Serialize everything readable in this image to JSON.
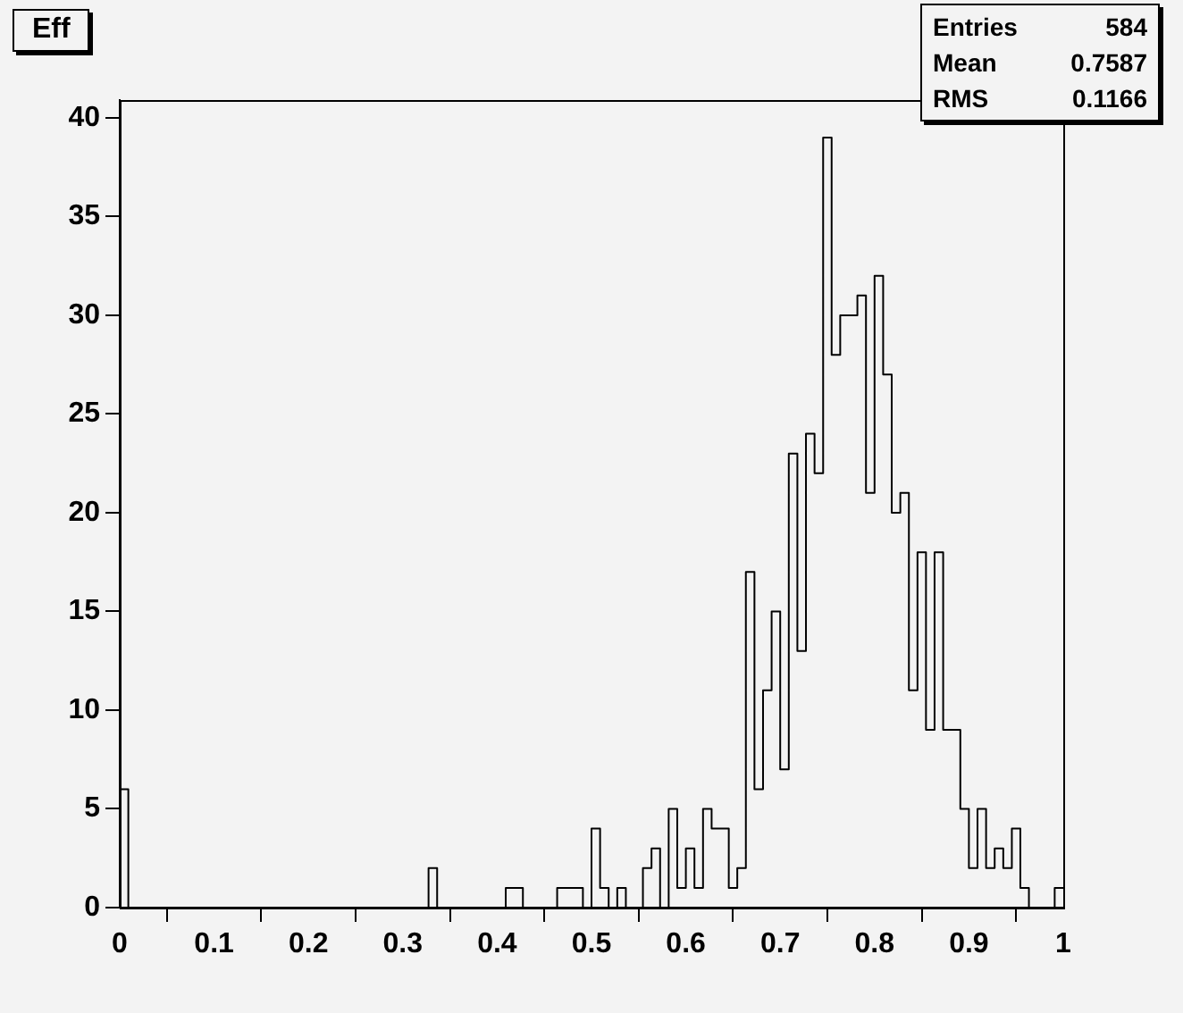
{
  "chart_data": {
    "type": "histogram",
    "title": "Eff",
    "annotations": [
      "Entries 584",
      "Mean 0.7587",
      "RMS 0.1166"
    ],
    "bins": [
      0,
      0.0091,
      0.0182,
      0.0273,
      0.0364,
      0.0455,
      0.0545,
      0.0636,
      0.0727,
      0.0818,
      0.0909,
      0.1,
      0.1091,
      0.1182,
      0.1273,
      0.1364,
      0.1455,
      0.1545,
      0.1636,
      0.1727,
      0.1818,
      0.1909,
      0.2,
      0.2091,
      0.2182,
      0.2273,
      0.2364,
      0.2455,
      0.2545,
      0.2636,
      0.2727,
      0.2818,
      0.2909,
      0.3,
      0.3091,
      0.3182,
      0.3273,
      0.3364,
      0.3455,
      0.3545,
      0.3636,
      0.3727,
      0.3818,
      0.3909,
      0.4,
      0.4091,
      0.4182,
      0.4273,
      0.4364,
      0.4455,
      0.4545,
      0.4636,
      0.4727,
      0.4818,
      0.4909,
      0.5,
      0.5091,
      0.5182,
      0.5273,
      0.5364,
      0.5455,
      0.5545,
      0.5636,
      0.5727,
      0.5818,
      0.5909,
      0.6,
      0.6091,
      0.6182,
      0.6273,
      0.6364,
      0.6455,
      0.6545,
      0.6636,
      0.6727,
      0.6818,
      0.6909,
      0.7,
      0.7091,
      0.7182,
      0.7273,
      0.7364,
      0.7455,
      0.7545,
      0.7636,
      0.7727,
      0.7818,
      0.7909,
      0.8,
      0.8091,
      0.8182,
      0.8273,
      0.8364,
      0.8455,
      0.8545,
      0.8636,
      0.8727,
      0.8818,
      0.8909,
      0.9,
      0.9091,
      0.9182,
      0.9273,
      0.9364,
      0.9455,
      0.9545,
      0.9636,
      0.9727,
      0.9818,
      0.9909,
      1
    ],
    "values": [
      6,
      0,
      0,
      0,
      0,
      0,
      0,
      0,
      0,
      0,
      0,
      0,
      0,
      0,
      0,
      0,
      0,
      0,
      0,
      0,
      0,
      0,
      0,
      0,
      0,
      0,
      0,
      0,
      0,
      0,
      0,
      0,
      0,
      0,
      0,
      0,
      2,
      0,
      0,
      0,
      0,
      0,
      0,
      0,
      0,
      1,
      1,
      0,
      0,
      0,
      0,
      1,
      1,
      1,
      0,
      4,
      1,
      0,
      1,
      0,
      0,
      2,
      3,
      0,
      5,
      1,
      3,
      1,
      5,
      4,
      4,
      1,
      2,
      17,
      6,
      11,
      15,
      7,
      23,
      13,
      24,
      22,
      39,
      28,
      30,
      30,
      31,
      21,
      32,
      27,
      20,
      21,
      11,
      18,
      9,
      18,
      9,
      9,
      5,
      2,
      5,
      2,
      3,
      2,
      4,
      1,
      0,
      0,
      0,
      1
    ],
    "color": "#000000",
    "xlim": [
      0,
      1
    ],
    "xticks": [
      0,
      0.1,
      0.2,
      0.3,
      0.4,
      0.5,
      0.6,
      0.7,
      0.8,
      0.9,
      1
    ],
    "ylim": [
      0,
      40.9
    ],
    "yticks": [
      0,
      5,
      10,
      15,
      20,
      25,
      30,
      35,
      40
    ]
  }
}
